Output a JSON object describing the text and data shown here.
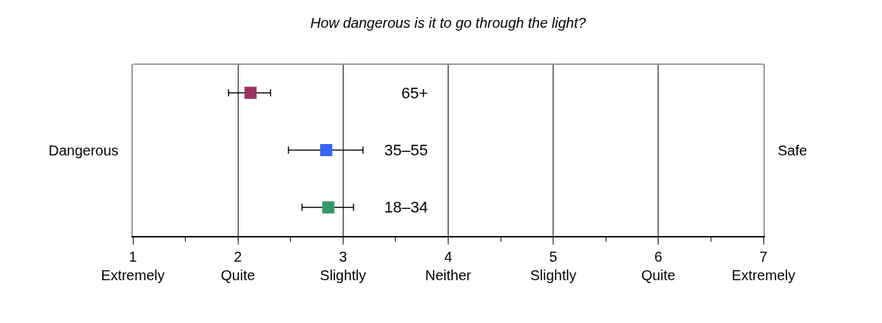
{
  "chart_data": {
    "type": "scatter",
    "orientation": "horizontal",
    "title": "How dangerous is it to go through the light?",
    "categories": [
      "65+",
      "35–55",
      "18–34"
    ],
    "values": [
      2.12,
      2.84,
      2.86
    ],
    "colors": [
      "#993366",
      "#3366ff",
      "#339966"
    ],
    "errors": [
      [
        1.91,
        2.31
      ],
      [
        2.48,
        3.19
      ],
      [
        2.61,
        3.1
      ]
    ],
    "xlim": [
      1,
      7
    ],
    "xticks": [
      {
        "value": 1,
        "label": "1\nExtremely"
      },
      {
        "value": 2,
        "label": "2\nQuite"
      },
      {
        "value": 3,
        "label": "3\nSlightly"
      },
      {
        "value": 4,
        "label": "4\nNeither"
      },
      {
        "value": 5,
        "label": "5\nSlightly"
      },
      {
        "value": 6,
        "label": "6\nQuite"
      },
      {
        "value": 7,
        "label": "7\nExtremely"
      }
    ],
    "grid": "x",
    "marker": "square",
    "tick_labels": "x",
    "annotations": [
      "Dangerous",
      "Safe"
    ]
  }
}
